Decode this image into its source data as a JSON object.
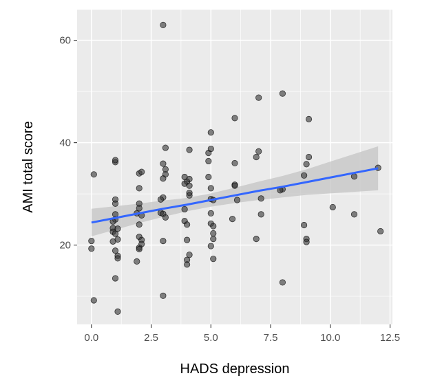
{
  "chart_data": {
    "type": "scatter",
    "title": "",
    "xlabel": "HADS depression",
    "ylabel": "AMI total score",
    "xlim": [
      -0.6,
      12.6
    ],
    "ylim": [
      4.5,
      66
    ],
    "x_ticks": [
      0,
      2.5,
      5,
      7.5,
      10,
      12.5
    ],
    "x_tick_labels": [
      "0.0",
      "2.5",
      "5.0",
      "7.5",
      "10.0",
      "12.5"
    ],
    "y_ticks": [
      20,
      40,
      60
    ],
    "y_tick_labels": [
      "20",
      "40",
      "60"
    ],
    "grid": true,
    "legend": "none",
    "colors": {
      "panel": "#ebebeb",
      "grid": "#ffffff",
      "point": "#333333",
      "fit_line": "#3366ff",
      "ribbon": "#c4c4c4"
    },
    "points": [
      {
        "x": 3.0,
        "y": 63.0
      },
      {
        "x": 7.0,
        "y": 48.8
      },
      {
        "x": 8.0,
        "y": 49.6
      },
      {
        "x": 6.0,
        "y": 44.8
      },
      {
        "x": 9.1,
        "y": 44.6
      },
      {
        "x": 5.0,
        "y": 42.0
      },
      {
        "x": 3.1,
        "y": 39.0
      },
      {
        "x": 4.1,
        "y": 38.6
      },
      {
        "x": 4.9,
        "y": 38.0
      },
      {
        "x": 5.0,
        "y": 38.8
      },
      {
        "x": 7.0,
        "y": 38.3
      },
      {
        "x": 1.0,
        "y": 36.2
      },
      {
        "x": 1.0,
        "y": 36.6
      },
      {
        "x": 3.0,
        "y": 35.9
      },
      {
        "x": 4.9,
        "y": 36.4
      },
      {
        "x": 6.0,
        "y": 36.0
      },
      {
        "x": 6.9,
        "y": 37.2
      },
      {
        "x": 9.1,
        "y": 37.2
      },
      {
        "x": 9.0,
        "y": 35.8
      },
      {
        "x": 12.0,
        "y": 35.1
      },
      {
        "x": 0.1,
        "y": 33.8
      },
      {
        "x": 2.0,
        "y": 34.0
      },
      {
        "x": 2.1,
        "y": 34.3
      },
      {
        "x": 3.1,
        "y": 34.8
      },
      {
        "x": 3.1,
        "y": 33.8
      },
      {
        "x": 3.9,
        "y": 33.3
      },
      {
        "x": 3.0,
        "y": 33.0
      },
      {
        "x": 4.0,
        "y": 32.4
      },
      {
        "x": 4.1,
        "y": 32.9
      },
      {
        "x": 4.9,
        "y": 33.3
      },
      {
        "x": 8.9,
        "y": 33.6
      },
      {
        "x": 11.0,
        "y": 33.4
      },
      {
        "x": 3.9,
        "y": 32.0
      },
      {
        "x": 4.1,
        "y": 31.6
      },
      {
        "x": 2.0,
        "y": 31.1
      },
      {
        "x": 5.0,
        "y": 31.1
      },
      {
        "x": 6.0,
        "y": 31.8
      },
      {
        "x": 6.0,
        "y": 31.6
      },
      {
        "x": 8.0,
        "y": 30.9
      },
      {
        "x": 7.9,
        "y": 30.7
      },
      {
        "x": 4.1,
        "y": 30.2
      },
      {
        "x": 4.1,
        "y": 29.7
      },
      {
        "x": 3.0,
        "y": 29.3
      },
      {
        "x": 2.9,
        "y": 28.9
      },
      {
        "x": 1.0,
        "y": 28.9
      },
      {
        "x": 1.0,
        "y": 28.1
      },
      {
        "x": 2.0,
        "y": 28.1
      },
      {
        "x": 5.0,
        "y": 29.0
      },
      {
        "x": 5.1,
        "y": 28.8
      },
      {
        "x": 6.1,
        "y": 28.8
      },
      {
        "x": 7.1,
        "y": 29.1
      },
      {
        "x": 2.0,
        "y": 27.2
      },
      {
        "x": 3.9,
        "y": 27.0
      },
      {
        "x": 10.1,
        "y": 27.4
      },
      {
        "x": 2.9,
        "y": 26.3
      },
      {
        "x": 3.0,
        "y": 26.1
      },
      {
        "x": 1.0,
        "y": 26.0
      },
      {
        "x": 1.9,
        "y": 26.2
      },
      {
        "x": 5.0,
        "y": 26.2
      },
      {
        "x": 7.1,
        "y": 26.0
      },
      {
        "x": 11.0,
        "y": 26.0
      },
      {
        "x": 2.1,
        "y": 25.8
      },
      {
        "x": 3.1,
        "y": 25.4
      },
      {
        "x": 1.0,
        "y": 25.0
      },
      {
        "x": 0.9,
        "y": 24.6
      },
      {
        "x": 5.9,
        "y": 25.1
      },
      {
        "x": 3.9,
        "y": 24.7
      },
      {
        "x": 2.0,
        "y": 24.0
      },
      {
        "x": 4.0,
        "y": 24.0
      },
      {
        "x": 5.0,
        "y": 24.2
      },
      {
        "x": 5.1,
        "y": 23.7
      },
      {
        "x": 8.9,
        "y": 23.9
      },
      {
        "x": 0.9,
        "y": 23.3
      },
      {
        "x": 1.1,
        "y": 23.2
      },
      {
        "x": 0.9,
        "y": 22.6
      },
      {
        "x": 1.0,
        "y": 22.2
      },
      {
        "x": 5.1,
        "y": 22.3
      },
      {
        "x": 12.1,
        "y": 22.7
      },
      {
        "x": 2.0,
        "y": 21.6
      },
      {
        "x": 2.1,
        "y": 21.0
      },
      {
        "x": 1.1,
        "y": 21.1
      },
      {
        "x": 0.0,
        "y": 20.8
      },
      {
        "x": 0.9,
        "y": 20.7
      },
      {
        "x": 3.0,
        "y": 20.8
      },
      {
        "x": 4.0,
        "y": 21.0
      },
      {
        "x": 5.1,
        "y": 21.2
      },
      {
        "x": 6.9,
        "y": 21.2
      },
      {
        "x": 9.0,
        "y": 21.2
      },
      {
        "x": 9.0,
        "y": 20.6
      },
      {
        "x": 2.1,
        "y": 20.2
      },
      {
        "x": 2.0,
        "y": 19.5
      },
      {
        "x": 2.0,
        "y": 19.2
      },
      {
        "x": 0.0,
        "y": 19.3
      },
      {
        "x": 5.0,
        "y": 19.8
      },
      {
        "x": 1.0,
        "y": 18.9
      },
      {
        "x": 1.1,
        "y": 17.9
      },
      {
        "x": 1.1,
        "y": 17.4
      },
      {
        "x": 4.1,
        "y": 18.1
      },
      {
        "x": 4.0,
        "y": 17.1
      },
      {
        "x": 4.0,
        "y": 16.2
      },
      {
        "x": 5.1,
        "y": 17.3
      },
      {
        "x": 1.9,
        "y": 16.8
      },
      {
        "x": 1.0,
        "y": 13.5
      },
      {
        "x": 8.0,
        "y": 12.7
      },
      {
        "x": 3.0,
        "y": 10.1
      },
      {
        "x": 0.1,
        "y": 9.2
      },
      {
        "x": 1.1,
        "y": 7.0
      }
    ],
    "fit": {
      "x": [
        0,
        1,
        2,
        3,
        4,
        5,
        6,
        7,
        8,
        9,
        10,
        11,
        12
      ],
      "y": [
        24.4,
        25.3,
        26.2,
        27.1,
        27.9,
        28.8,
        29.7,
        30.6,
        31.4,
        32.3,
        33.2,
        34.1,
        35.0
      ],
      "lower": [
        21.7,
        23.0,
        24.3,
        25.5,
        26.6,
        27.5,
        28.2,
        28.8,
        29.3,
        29.8,
        30.1,
        30.4,
        30.7
      ],
      "upper": [
        27.1,
        27.6,
        28.1,
        28.7,
        29.2,
        30.1,
        31.2,
        32.4,
        33.5,
        34.8,
        36.3,
        37.8,
        39.3
      ]
    }
  }
}
